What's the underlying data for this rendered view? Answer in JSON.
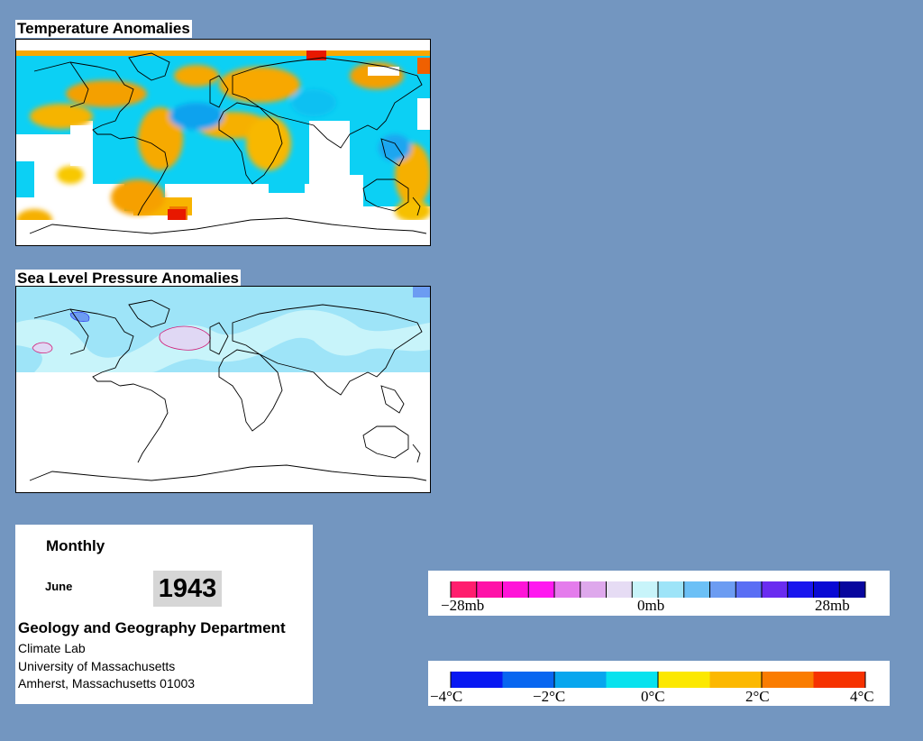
{
  "temperature_map": {
    "title": "Temperature Anomalies"
  },
  "pressure_map": {
    "title": "Sea Level Pressure Anomalies"
  },
  "info": {
    "period": "Monthly",
    "month": "June",
    "year": "1943",
    "department": "Geology and Geography Department",
    "lines": [
      "Climate Lab",
      "University of Massachusetts",
      "Amherst, Massachusetts 01003"
    ]
  },
  "pressure_legend": {
    "labels": [
      "−28mb",
      "0mb",
      "28mb"
    ],
    "colors": [
      "#ff1e6e",
      "#ff12a8",
      "#ff14d8",
      "#ff18f0",
      "#e47cec",
      "#dea8ec",
      "#e6dcf4",
      "#c8f4fa",
      "#9ee4f8",
      "#6cc0f6",
      "#6c9cf2",
      "#5a6ef4",
      "#6a2cf0",
      "#1a16ee",
      "#0a0ad4",
      "#08069e"
    ]
  },
  "temperature_legend": {
    "labels": [
      "−4°C",
      "−2°C",
      "0°C",
      "2°C",
      "4°C"
    ],
    "colors": [
      "#0818f2",
      "#0866f0",
      "#08a6ee",
      "#08e2ee",
      "#fce800",
      "#fcb800",
      "#fa7c00",
      "#f63200"
    ]
  }
}
